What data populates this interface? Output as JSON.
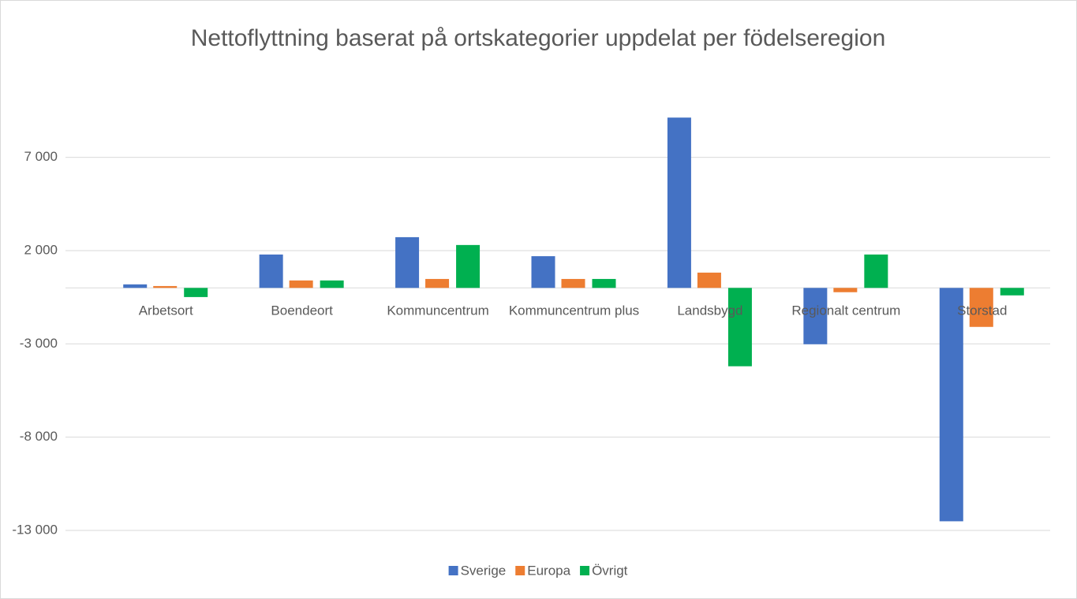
{
  "chart_data": {
    "type": "bar",
    "title": "Nettoflyttning baserat på ortskategorier uppdelat per födelseregion",
    "categories": [
      "Arbetsort",
      "Boendeort",
      "Kommuncentrum",
      "Kommuncentrum plus",
      "Landsbygd",
      "Regionalt centrum",
      "Storstad"
    ],
    "series": [
      {
        "name": "Sverige",
        "color": "#4472c4",
        "values": [
          190,
          1790,
          2720,
          1700,
          9130,
          -3020,
          -12510
        ]
      },
      {
        "name": "Europa",
        "color": "#ed7d31",
        "values": [
          100,
          400,
          480,
          480,
          820,
          -230,
          -2090
        ]
      },
      {
        "name": "Övrigt",
        "color": "#00b050",
        "values": [
          -490,
          400,
          2300,
          480,
          -4200,
          1790,
          -400
        ]
      }
    ],
    "ylim": [
      -13000,
      10000
    ],
    "yticks": [
      {
        "value": 7000,
        "label": "7 000"
      },
      {
        "value": 2000,
        "label": "2 000"
      },
      {
        "value": -3000,
        "label": "-3 000"
      },
      {
        "value": -8000,
        "label": "-8 000"
      },
      {
        "value": -13000,
        "label": "-13 000"
      }
    ],
    "grid": true,
    "legend": "bottom"
  }
}
